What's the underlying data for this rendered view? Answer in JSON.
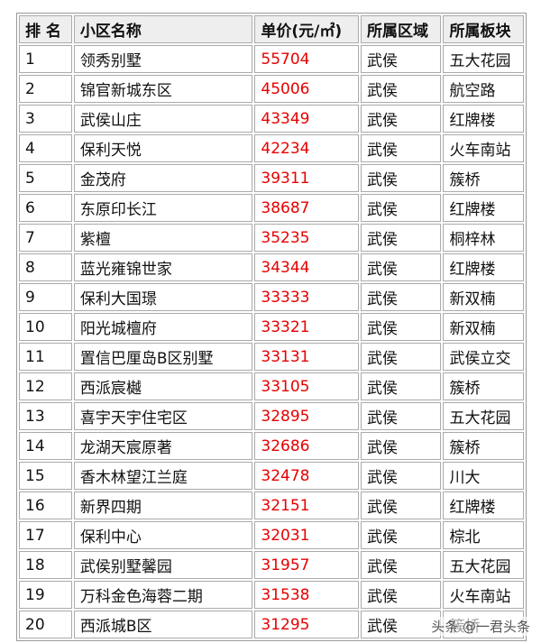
{
  "table": {
    "header": [
      "排 名",
      "小区名称",
      "单价(元/㎡)",
      "所属区域",
      "所属板块"
    ],
    "rows": [
      [
        1,
        "领秀别墅",
        55704,
        "武侯",
        "五大花园"
      ],
      [
        2,
        "锦官新城东区",
        45006,
        "武侯",
        "航空路"
      ],
      [
        3,
        "武侯山庄",
        43349,
        "武侯",
        "红牌楼"
      ],
      [
        4,
        "保利天悦",
        42234,
        "武侯",
        "火车南站"
      ],
      [
        5,
        "金茂府",
        39311,
        "武侯",
        "簇桥"
      ],
      [
        6,
        "东原印长江",
        38687,
        "武侯",
        "红牌楼"
      ],
      [
        7,
        "紫檀",
        35235,
        "武侯",
        "桐梓林"
      ],
      [
        8,
        "蓝光雍锦世家",
        34344,
        "武侯",
        "红牌楼"
      ],
      [
        9,
        "保利大国璟",
        33333,
        "武侯",
        "新双楠"
      ],
      [
        10,
        "阳光城檀府",
        33321,
        "武侯",
        "新双楠"
      ],
      [
        11,
        "置信巴厘岛B区别墅",
        33131,
        "武侯",
        "武侯立交"
      ],
      [
        12,
        "西派宸樾",
        33105,
        "武侯",
        "簇桥"
      ],
      [
        13,
        "喜宇天宇住宅区",
        32895,
        "武侯",
        "五大花园"
      ],
      [
        14,
        "龙湖天宸原著",
        32686,
        "武侯",
        "簇桥"
      ],
      [
        15,
        "香木林望江兰庭",
        32478,
        "武侯",
        "川大"
      ],
      [
        16,
        "新界四期",
        32151,
        "武侯",
        "红牌楼"
      ],
      [
        17,
        "保利中心",
        32031,
        "武侯",
        "棕北"
      ],
      [
        18,
        "武侯别墅馨园",
        31957,
        "武侯",
        "五大花园"
      ],
      [
        19,
        "万科金色海蓉二期",
        31538,
        "武侯",
        "火车南站"
      ],
      [
        20,
        "西派城B区",
        31295,
        "武侯",
        "簇桥"
      ]
    ]
  },
  "watermark": "头条 @一君头条"
}
